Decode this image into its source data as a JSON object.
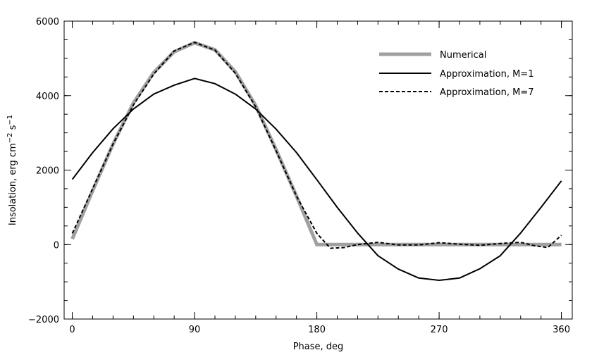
{
  "chart_data": {
    "type": "line",
    "title": "",
    "xlabel": "Phase, deg",
    "ylabel_parts": {
      "base": "Insolation, erg cm",
      "exp1": "−2",
      "mid": " s",
      "exp2": "−1"
    },
    "xlim": [
      -6,
      368
    ],
    "ylim": [
      -2000,
      6000
    ],
    "xticks": [
      0,
      90,
      180,
      270,
      360
    ],
    "xtick_labels": [
      "0",
      "90",
      "180",
      "270",
      "360"
    ],
    "yticks": [
      -2000,
      0,
      2000,
      4000,
      6000
    ],
    "ytick_labels": [
      "−2000",
      "0",
      "2000",
      "4000",
      "6000"
    ],
    "x_minor_step": 15,
    "y_minor_step": 500,
    "legend_position": "top-right",
    "series": [
      {
        "name": "Numerical",
        "style": "thick-gray",
        "color": "#a0a0a0",
        "x": [
          0,
          15,
          30,
          45,
          60,
          75,
          90,
          105,
          120,
          135,
          150,
          165,
          180,
          360
        ],
        "y": [
          150,
          1450,
          2700,
          3800,
          4620,
          5180,
          5420,
          5230,
          4640,
          3730,
          2550,
          1300,
          0,
          0
        ]
      },
      {
        "name": "Approximation, M=1",
        "style": "solid",
        "color": "#000000",
        "x": [
          0,
          15,
          30,
          45,
          60,
          75,
          90,
          105,
          120,
          135,
          150,
          165,
          180,
          195,
          210,
          225,
          240,
          255,
          270,
          285,
          300,
          315,
          330,
          345,
          360
        ],
        "y": [
          1750,
          2470,
          3110,
          3640,
          4040,
          4280,
          4460,
          4320,
          4040,
          3640,
          3100,
          2470,
          1740,
          1000,
          310,
          -300,
          -660,
          -900,
          -960,
          -900,
          -650,
          -300,
          310,
          1000,
          1710
        ]
      },
      {
        "name": "Approximation, M=7",
        "style": "dashed",
        "color": "#000000",
        "x": [
          0,
          15,
          30,
          45,
          60,
          75,
          90,
          105,
          120,
          135,
          150,
          165,
          180,
          190,
          200,
          210,
          225,
          240,
          255,
          270,
          285,
          300,
          315,
          330,
          340,
          350,
          360
        ],
        "y": [
          300,
          1500,
          2700,
          3750,
          4580,
          5200,
          5430,
          5220,
          4600,
          3700,
          2520,
          1300,
          300,
          -100,
          -80,
          0,
          60,
          -10,
          -10,
          50,
          10,
          -20,
          30,
          60,
          -30,
          -80,
          250
        ]
      }
    ]
  }
}
